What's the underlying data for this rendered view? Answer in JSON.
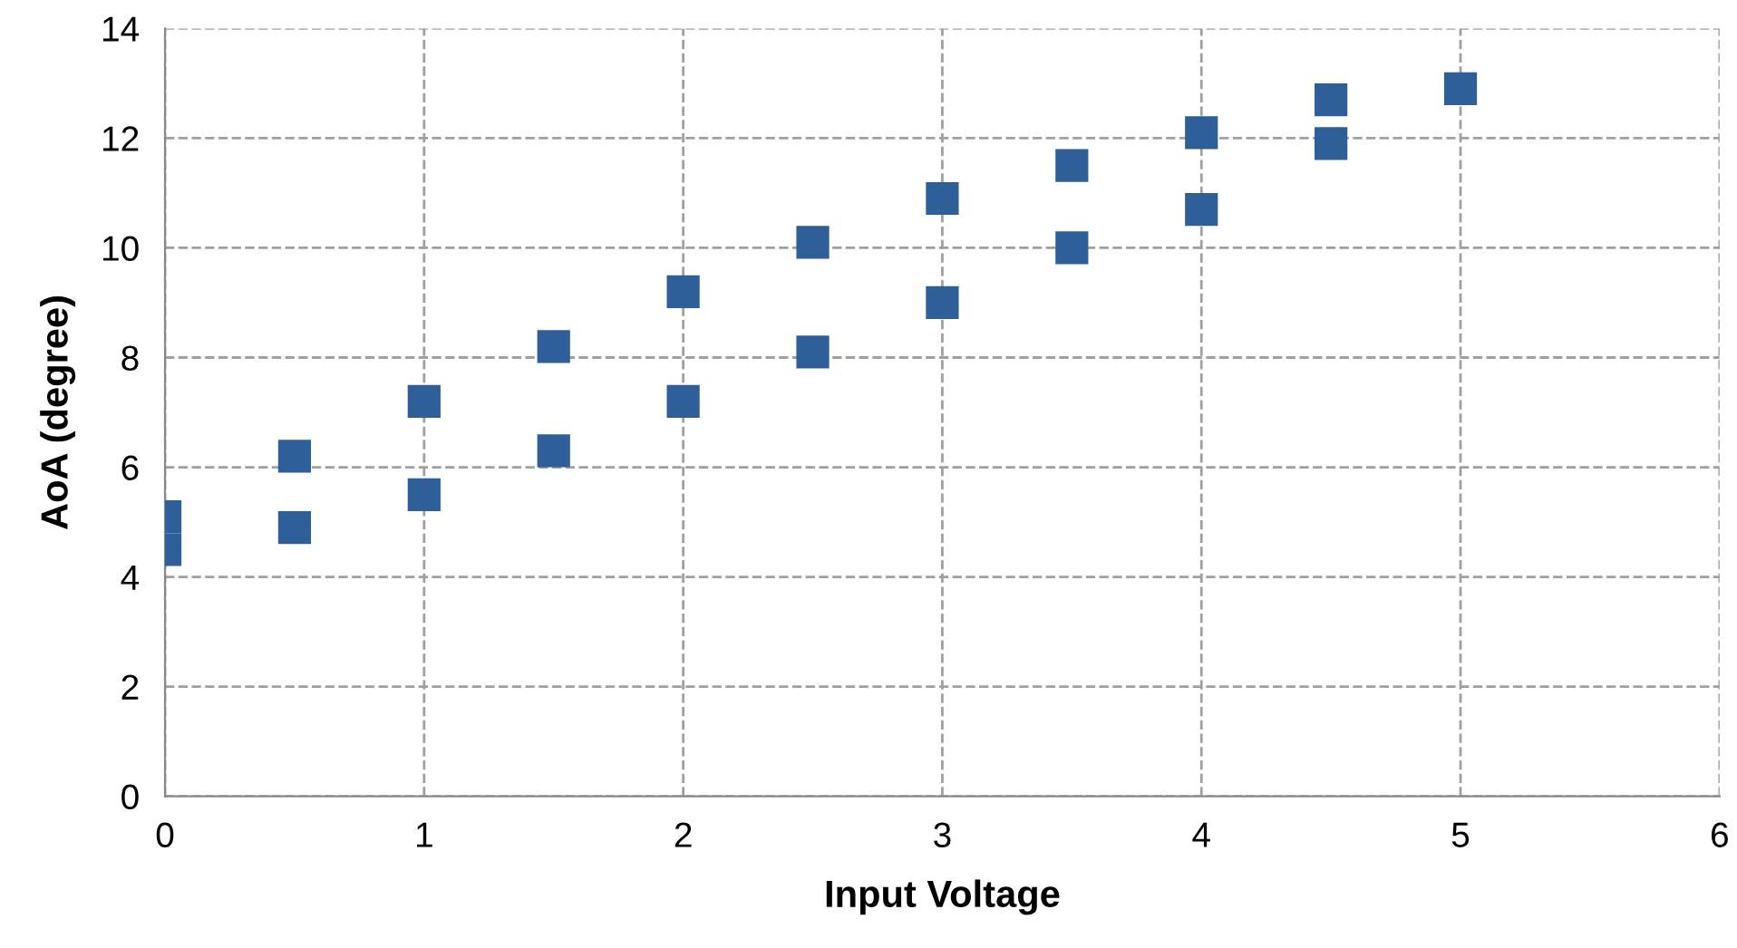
{
  "chart_data": {
    "type": "scatter",
    "xlabel": "Input Voltage",
    "ylabel": "AoA (degree)",
    "x": [
      0,
      0,
      0.5,
      0.5,
      1,
      1,
      1.5,
      1.5,
      2,
      2,
      2.5,
      2.5,
      3,
      3,
      3.5,
      3.5,
      4,
      4,
      4.5,
      4.5,
      5
    ],
    "series": [
      {
        "color": "#2f5f98",
        "values": [
          5.1,
          4.5,
          6.2,
          4.9,
          7.2,
          5.5,
          8.2,
          6.3,
          9.2,
          7.2,
          10.1,
          8.1,
          10.9,
          9.0,
          11.5,
          10.0,
          12.1,
          10.7,
          12.7,
          11.9,
          12.9
        ]
      }
    ],
    "xlim": [
      0,
      6
    ],
    "xticks": [
      0,
      1,
      2,
      3,
      4,
      5,
      6
    ],
    "ylim": [
      0,
      14
    ],
    "yticks": [
      0,
      2,
      4,
      6,
      8,
      10,
      12,
      14
    ],
    "grid": true,
    "marker": "square",
    "legend": false
  }
}
